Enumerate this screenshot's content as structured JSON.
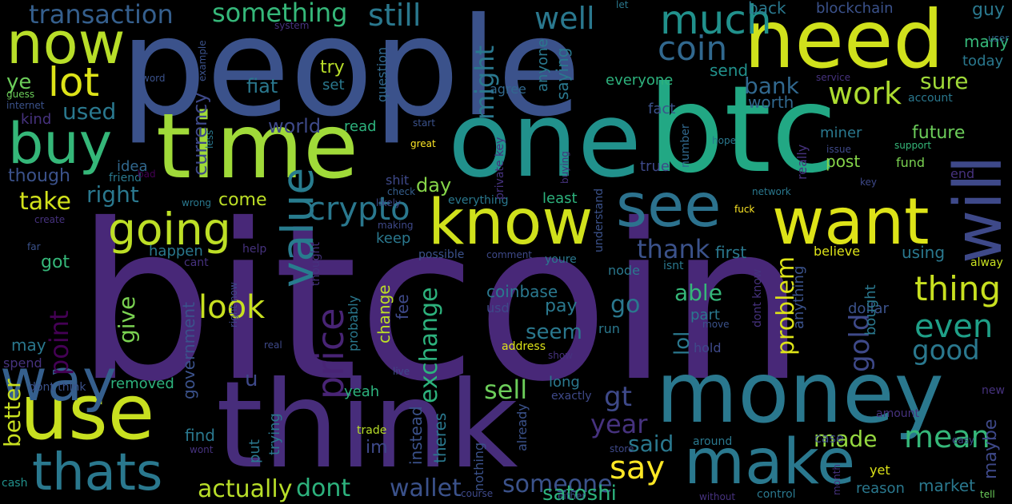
{
  "words": [
    "bitcoin",
    "people",
    "one",
    "btc",
    "time",
    "think",
    "money",
    "need",
    "use",
    "make",
    "know",
    "want",
    "see",
    "way",
    "will",
    "now",
    "buy",
    "lot",
    "thats",
    "going",
    "value",
    "price",
    "crypto",
    "much",
    "coin",
    "well",
    "transaction",
    "something",
    "still",
    "might",
    "exchange",
    "work",
    "bank",
    "sure",
    "used",
    "ye",
    "look",
    "point",
    "thank",
    "thing",
    "even",
    "good",
    "gold",
    "problem",
    "mean",
    "say",
    "year",
    "said",
    "made",
    "sell",
    "wallet",
    "dont",
    "someone",
    "satoshi",
    "actually",
    "better",
    "give",
    "take",
    "right",
    "day",
    "currency",
    "world",
    "read",
    "fiat",
    "try",
    "set",
    "question",
    "agree",
    "saying",
    "anyone",
    "everyone",
    "send",
    "fact",
    "worth",
    "blockchain",
    "guy",
    "many",
    "today",
    "user",
    "account",
    "back",
    "let",
    "system",
    "example",
    "word",
    "guess",
    "internet",
    "kind",
    "though",
    "idea",
    "friend",
    "bad",
    "wrong",
    "create",
    "far",
    "come",
    "happen",
    "cant",
    "got",
    "may",
    "spend",
    "dont think",
    "removed",
    "find",
    "wont",
    "cash",
    "government",
    "right now",
    "real",
    "help",
    "thought",
    "likely",
    "making",
    "possible",
    "comment",
    "keep",
    "shit",
    "check",
    "everything",
    "private key",
    "buying",
    "network",
    "key",
    "issue",
    "support",
    "hope",
    "future",
    "post",
    "fund",
    "end",
    "miner",
    "really",
    "number",
    "true",
    "least",
    "understand",
    "fuck",
    "node",
    "first",
    "isnt",
    "dont know",
    "believe",
    "using",
    "alway",
    "able",
    "anything",
    "dollar",
    "part",
    "move",
    "bought",
    "new",
    "lol",
    "hold",
    "show",
    "address",
    "pay",
    "go",
    "seem",
    "run",
    "usd",
    "coinbase",
    "change",
    "fee",
    "probably",
    "live",
    "yeah",
    "gt",
    "long",
    "exactly",
    "instead",
    "theres",
    "trade",
    "im",
    "put",
    "trying",
    "u",
    "already",
    "nothing",
    "course",
    "either",
    "store",
    "around",
    "case",
    "amount",
    "easy",
    "yet",
    "reason",
    "maybe",
    "market",
    "tell",
    "control",
    "without",
    "month",
    "great",
    "service",
    "start",
    "less",
    "youre"
  ]
}
